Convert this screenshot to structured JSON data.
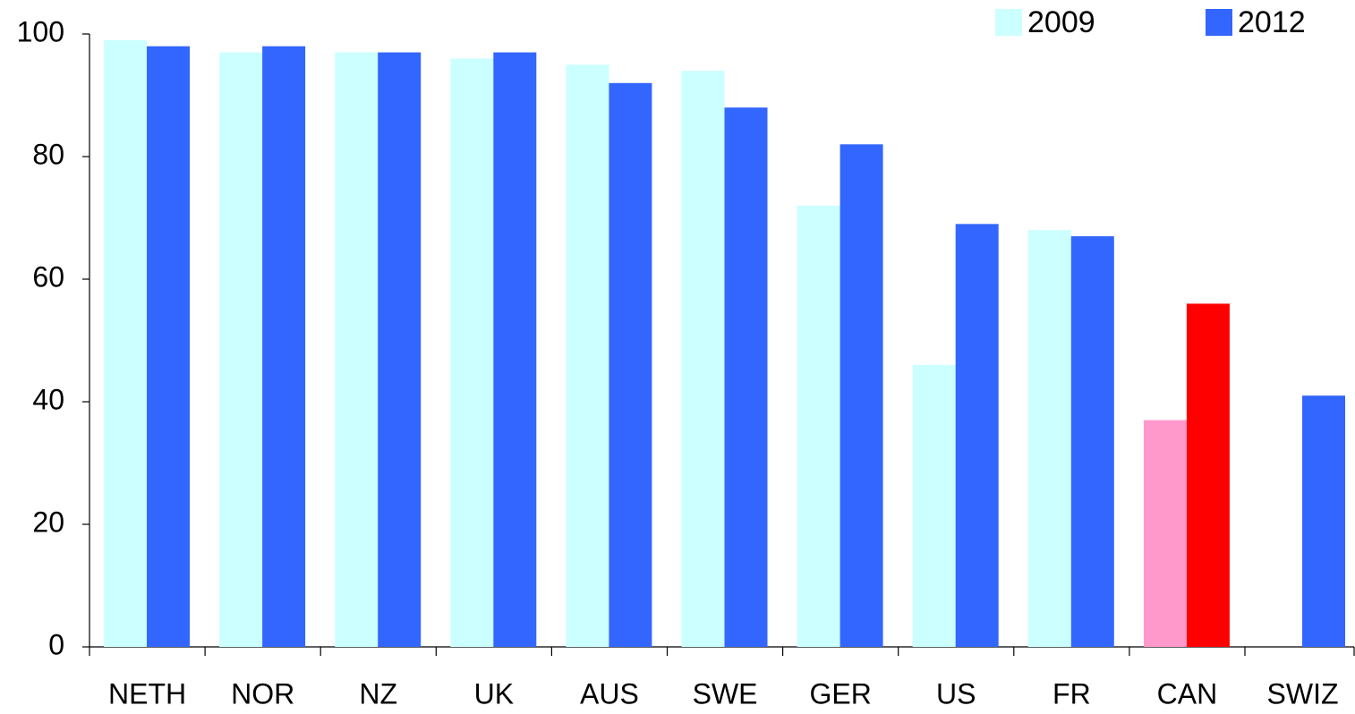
{
  "chart_data": {
    "type": "bar",
    "categories": [
      "NETH",
      "NOR",
      "NZ",
      "UK",
      "AUS",
      "SWE",
      "GER",
      "US",
      "FR",
      "CAN",
      "SWIZ"
    ],
    "series": [
      {
        "name": "2009",
        "color": "#ccffff",
        "values": [
          99,
          97,
          97,
          96,
          95,
          94,
          72,
          46,
          68,
          37,
          null
        ],
        "colors": [
          "#ccffff",
          "#ccffff",
          "#ccffff",
          "#ccffff",
          "#ccffff",
          "#ccffff",
          "#ccffff",
          "#ccffff",
          "#ccffff",
          "#ff99cc",
          "#ccffff"
        ]
      },
      {
        "name": "2012",
        "color": "#3366ff",
        "values": [
          98,
          98,
          97,
          97,
          92,
          88,
          82,
          69,
          67,
          56,
          41
        ],
        "colors": [
          "#3366ff",
          "#3366ff",
          "#3366ff",
          "#3366ff",
          "#3366ff",
          "#3366ff",
          "#3366ff",
          "#3366ff",
          "#3366ff",
          "#ff0000",
          "#3366ff"
        ]
      }
    ],
    "ylim": [
      0,
      100
    ],
    "yticks": [
      0,
      20,
      40,
      60,
      80,
      100
    ],
    "grid": false,
    "legend": "top-right"
  }
}
